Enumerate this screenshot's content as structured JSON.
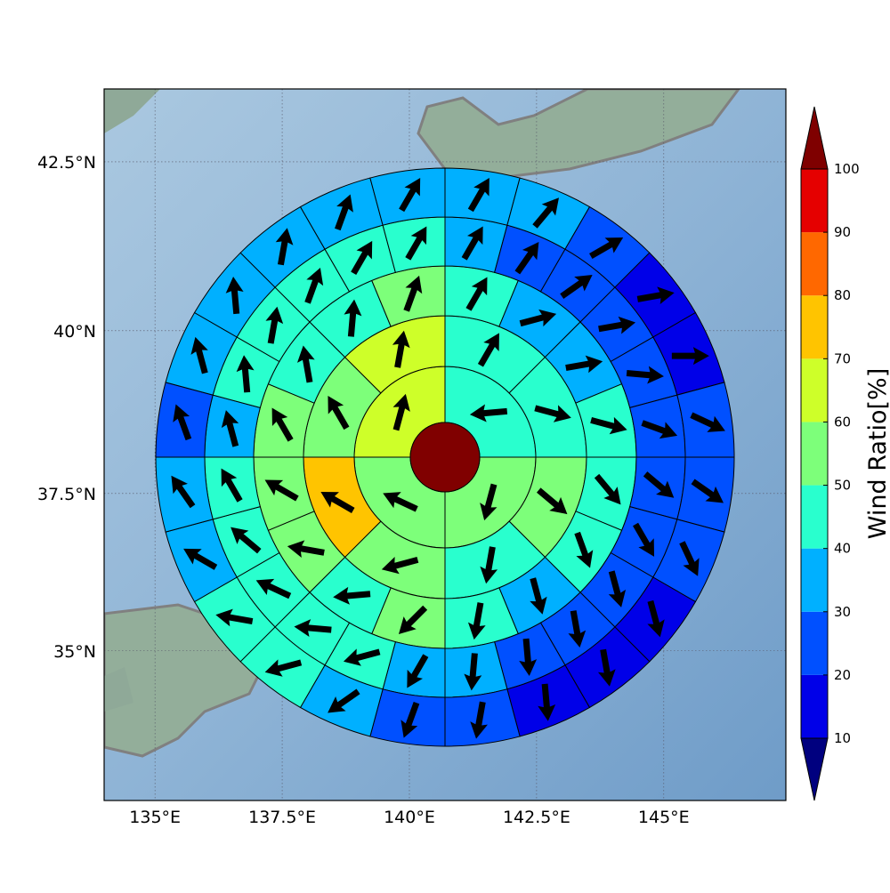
{
  "chart_data": {
    "type": "polar-sector-map",
    "projection": "mercator",
    "xlim": [
      134,
      147.4
    ],
    "ylim": [
      32.55,
      43.55
    ],
    "xticks": [
      {
        "value": 135,
        "label": "135°E"
      },
      {
        "value": 137.5,
        "label": "137.5°E"
      },
      {
        "value": 140,
        "label": "140°E"
      },
      {
        "value": 142.5,
        "label": "142.5°E"
      },
      {
        "value": 145,
        "label": "145°E"
      }
    ],
    "yticks": [
      {
        "value": 35,
        "label": "35°N"
      },
      {
        "value": 37.5,
        "label": "37.5°N"
      },
      {
        "value": 40,
        "label": "40°N"
      },
      {
        "value": 42.5,
        "label": "42.5°N"
      }
    ],
    "grid": true,
    "colorbar": {
      "label": "Wind Ratio[%]",
      "levels": [
        10,
        20,
        30,
        40,
        50,
        60,
        70,
        80,
        90,
        100
      ],
      "colors": [
        "#00007f",
        "#0000e8",
        "#0050ff",
        "#00b0ff",
        "#29ffce",
        "#7dff7a",
        "#ceff29",
        "#ffc400",
        "#ff6800",
        "#e50000",
        "#7f0000"
      ]
    },
    "rings": [
      {
        "values": [
          45,
          55,
          55,
          65
        ],
        "directions": [
          265,
          195,
          295,
          15
        ]
      },
      {
        "values": [
          45,
          45,
          55,
          45,
          55,
          75,
          55,
          65
        ],
        "directions": [
          30,
          105,
          130,
          190,
          255,
          300,
          330,
          10
        ]
      },
      {
        "values": [
          45,
          35,
          35,
          45,
          45,
          45,
          35,
          45,
          55,
          45,
          55,
          55,
          55,
          45,
          45,
          55
        ],
        "directions": [
          30,
          75,
          80,
          105,
          140,
          160,
          165,
          190,
          225,
          265,
          280,
          300,
          330,
          350,
          5,
          20
        ]
      },
      {
        "values": [
          35,
          25,
          25,
          25,
          25,
          25,
          25,
          25,
          25,
          25,
          25,
          35,
          35,
          45,
          45,
          45,
          45,
          45,
          35,
          45,
          45,
          45,
          45,
          45
        ],
        "directions": [
          30,
          35,
          55,
          80,
          95,
          110,
          130,
          150,
          165,
          170,
          175,
          185,
          210,
          255,
          275,
          295,
          310,
          330,
          345,
          355,
          10,
          20,
          30,
          30
        ]
      },
      {
        "values": [
          35,
          35,
          25,
          15,
          15,
          25,
          25,
          25,
          15,
          15,
          15,
          25,
          25,
          35,
          45,
          45,
          35,
          35,
          25,
          35,
          35,
          35,
          35,
          35
        ],
        "directions": [
          30,
          40,
          60,
          80,
          90,
          115,
          125,
          155,
          165,
          170,
          175,
          190,
          200,
          235,
          255,
          280,
          300,
          325,
          340,
          345,
          355,
          10,
          20,
          30
        ]
      }
    ]
  }
}
